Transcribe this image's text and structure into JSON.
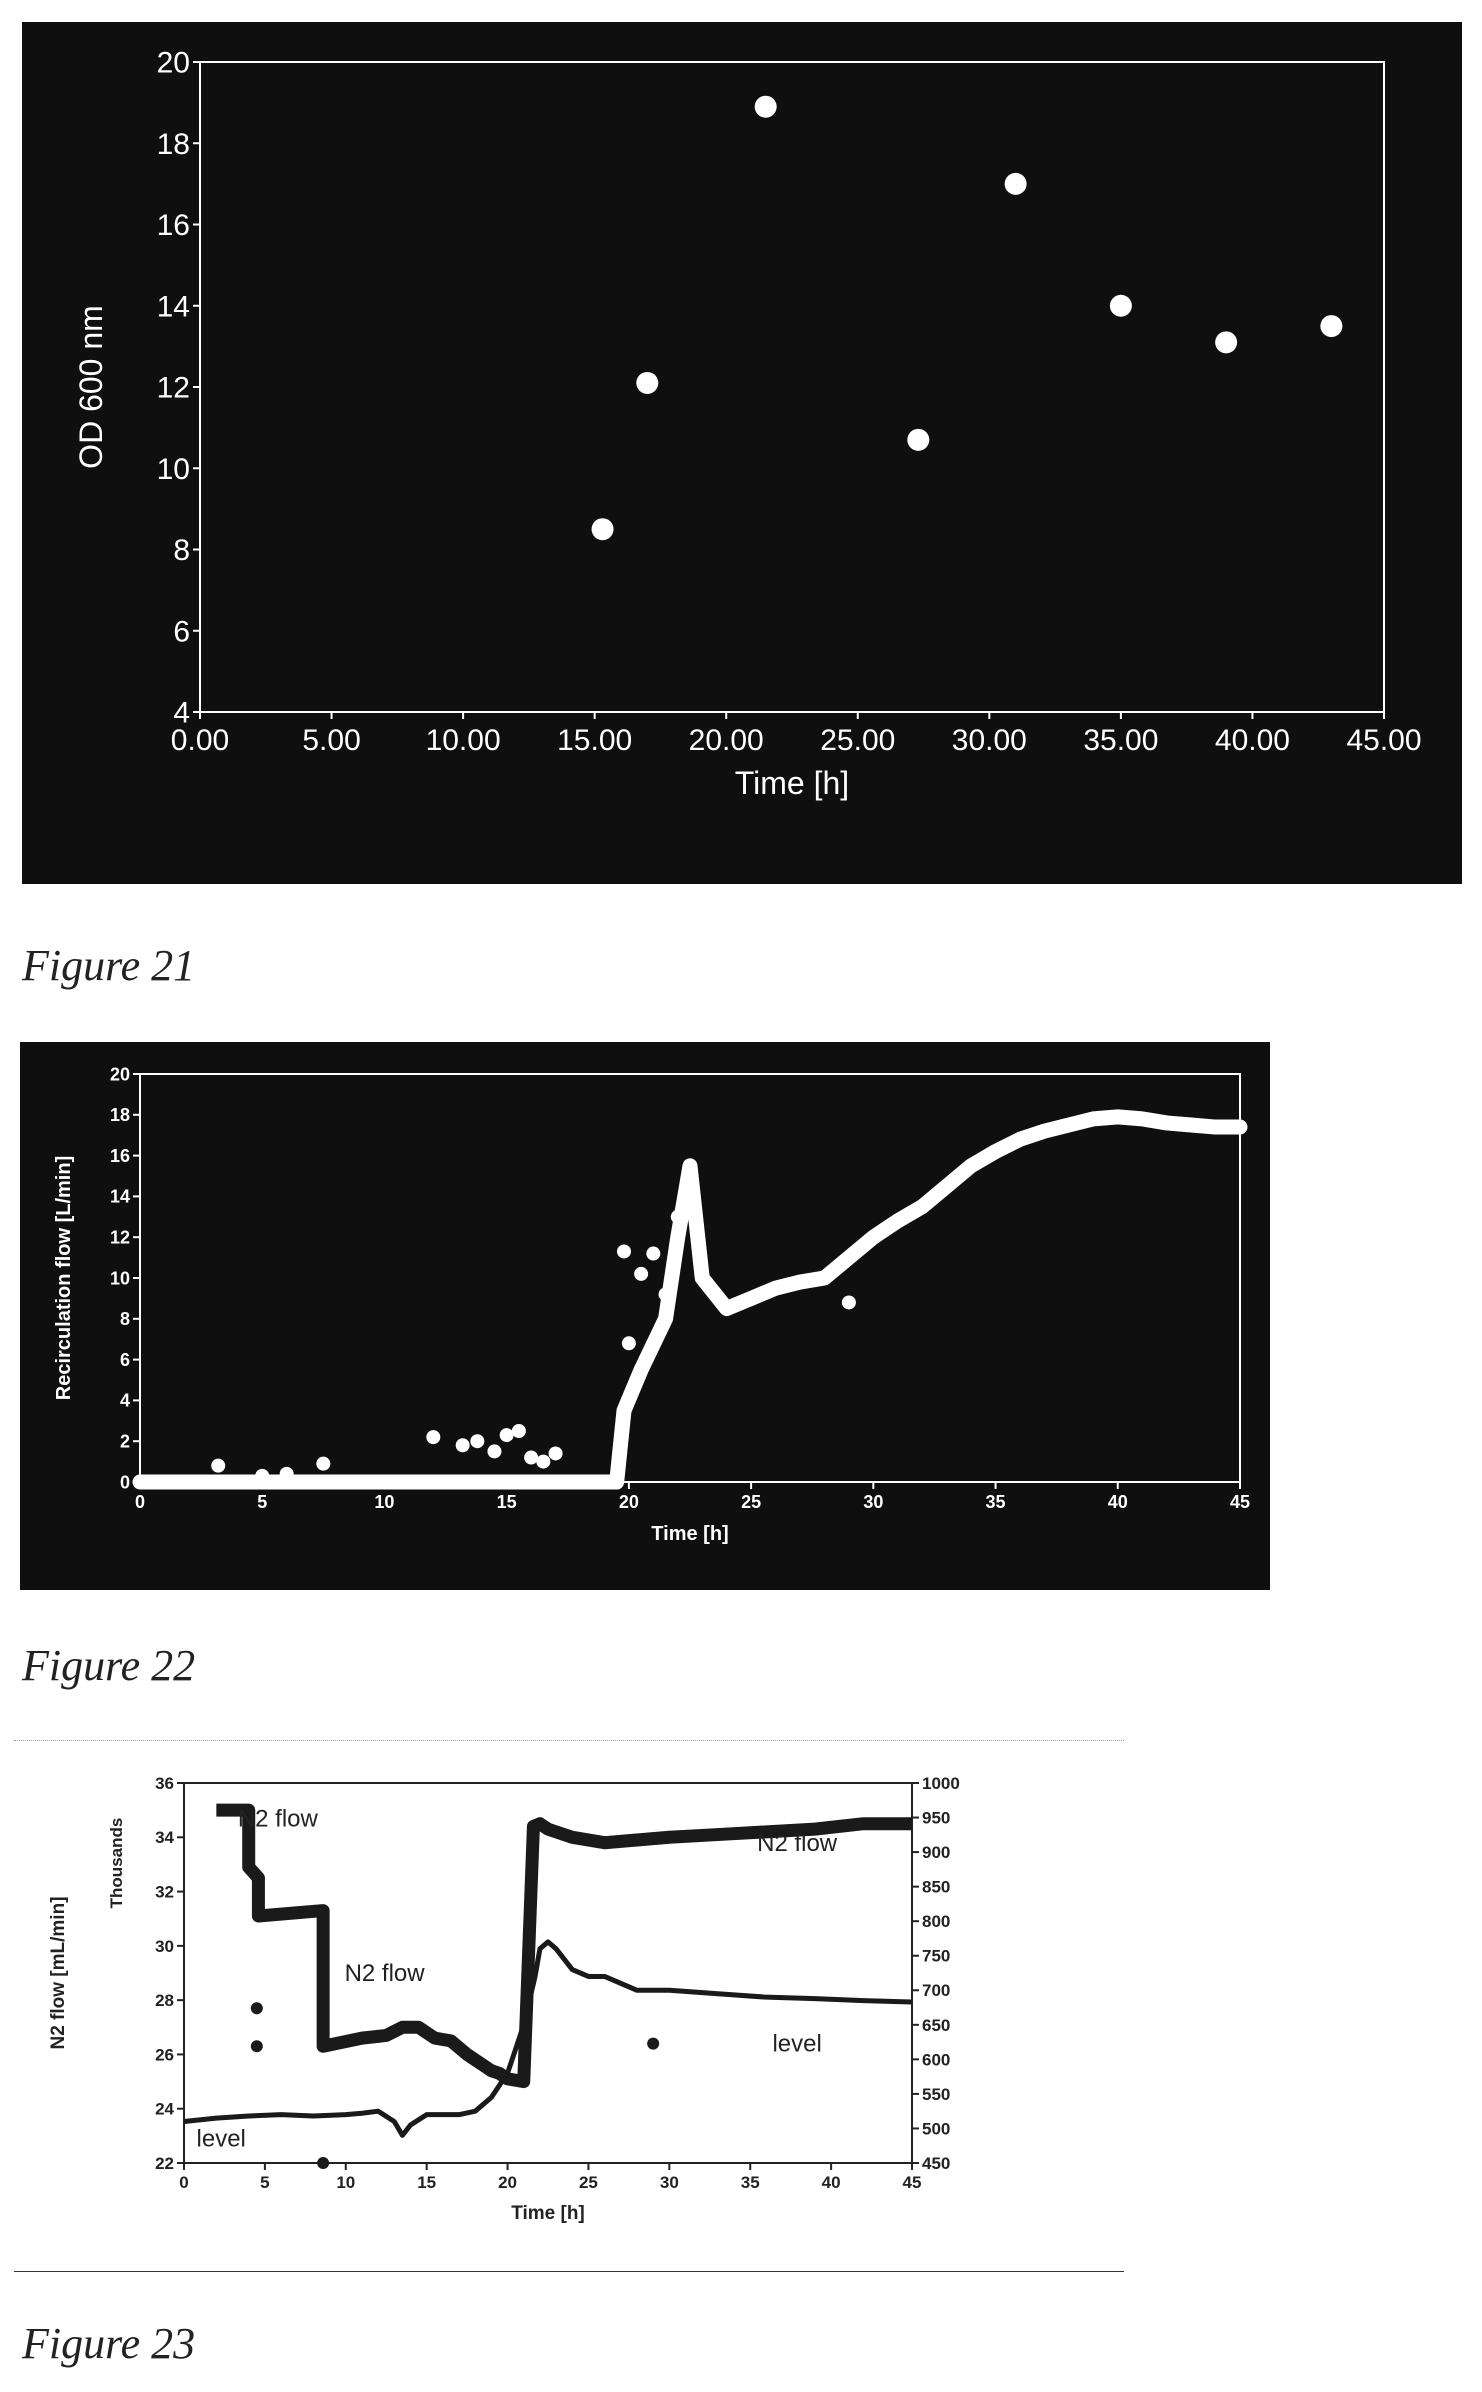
{
  "chart_data": [
    {
      "type": "scatter",
      "title": "",
      "xlabel": "Time [h]",
      "ylabel": "OD 600 nm",
      "xlim": [
        0,
        45
      ],
      "ylim": [
        4,
        20
      ],
      "xticks": [
        0,
        5,
        10,
        15,
        20,
        25,
        30,
        35,
        40,
        45
      ],
      "xtick_labels": [
        "0.00",
        "5.00",
        "10.00",
        "15.00",
        "20.00",
        "25.00",
        "30.00",
        "35.00",
        "40.00",
        "45.00"
      ],
      "yticks": [
        4,
        6,
        8,
        10,
        12,
        14,
        16,
        18,
        20
      ],
      "ytick_labels": [
        "4",
        "6",
        "8",
        "10",
        "12",
        "14",
        "16",
        "18",
        "20"
      ],
      "grid": false,
      "x": [
        15.3,
        17.0,
        21.5,
        27.3,
        31.0,
        35.0,
        39.0,
        43.0
      ],
      "y": [
        8.5,
        12.1,
        18.9,
        10.7,
        17.0,
        14.0,
        13.1,
        13.5
      ],
      "colors": {
        "background": "#0f0f0f",
        "marker": "#ffffff",
        "axis": "#ffffff"
      }
    },
    {
      "type": "scatter",
      "title": "",
      "xlabel": "Time [h]",
      "ylabel": "Recirculation flow [L/min]",
      "xlim": [
        0,
        45
      ],
      "ylim": [
        0,
        20
      ],
      "xticks": [
        0,
        5,
        10,
        15,
        20,
        25,
        30,
        35,
        40,
        45
      ],
      "xtick_labels": [
        "0",
        "5",
        "10",
        "15",
        "20",
        "25",
        "30",
        "35",
        "40",
        "45"
      ],
      "yticks": [
        0,
        2,
        4,
        6,
        8,
        10,
        12,
        14,
        16,
        18,
        20
      ],
      "ytick_labels": [
        "0",
        "2",
        "4",
        "6",
        "8",
        "10",
        "12",
        "14",
        "16",
        "18",
        "20"
      ],
      "grid": false,
      "series": [
        {
          "x": [
            0,
            2,
            4,
            6,
            8,
            10,
            12,
            14,
            16,
            18,
            19.5,
            19.8,
            20.5,
            21.5,
            22.0,
            22.5,
            23.0,
            24.0,
            25.0,
            26.0,
            27.0,
            28.0,
            29.0,
            30.0,
            31.0,
            32.0,
            33.0,
            34.0,
            35.0,
            36.0,
            37.0,
            38.0,
            39.0,
            40.0,
            41.0,
            42.0,
            43.0,
            44.0,
            45.0
          ],
          "y": [
            0,
            0,
            0,
            0,
            0,
            0,
            0,
            0,
            0,
            0,
            0,
            3.5,
            5.5,
            8.0,
            12.0,
            15.5,
            10.0,
            8.5,
            9.0,
            9.5,
            9.8,
            10.0,
            11.0,
            12.0,
            12.8,
            13.5,
            14.5,
            15.5,
            16.2,
            16.8,
            17.2,
            17.5,
            17.8,
            17.9,
            17.8,
            17.6,
            17.5,
            17.4,
            17.4
          ]
        },
        {
          "x": [
            3.2,
            5.0,
            6.0,
            7.5,
            12.0,
            13.2,
            13.8,
            14.5,
            15.0,
            15.5,
            16.0,
            16.5,
            17.0,
            19.8,
            20.0,
            20.5,
            21.0,
            21.5,
            22.0,
            29.0
          ],
          "y": [
            0.8,
            0.3,
            0.4,
            0.9,
            2.2,
            1.8,
            2.0,
            1.5,
            2.3,
            2.5,
            1.2,
            1.0,
            1.4,
            11.3,
            6.8,
            10.2,
            11.2,
            9.2,
            13.0,
            8.8
          ]
        }
      ],
      "colors": {
        "background": "#0f0f0f",
        "marker": "#ffffff",
        "axis": "#ffffff"
      }
    },
    {
      "type": "line",
      "title": "",
      "xlabel": "Time [h]",
      "ylabel": "N2 flow [mL/min]",
      "y_multiplier_label": "Thousands",
      "xlim": [
        0,
        45
      ],
      "ylim": [
        22,
        36
      ],
      "y2lim": [
        450,
        1000
      ],
      "xticks": [
        0,
        5,
        10,
        15,
        20,
        25,
        30,
        35,
        40,
        45
      ],
      "xtick_labels": [
        "0",
        "5",
        "10",
        "15",
        "20",
        "25",
        "30",
        "35",
        "40",
        "45"
      ],
      "yticks": [
        22,
        24,
        26,
        28,
        30,
        32,
        34,
        36
      ],
      "ytick_labels": [
        "22",
        "24",
        "26",
        "28",
        "30",
        "32",
        "34",
        "36"
      ],
      "y2ticks": [
        450,
        500,
        550,
        600,
        650,
        700,
        750,
        800,
        850,
        900,
        950,
        1000
      ],
      "y2tick_labels": [
        "450",
        "500",
        "550",
        "600",
        "650",
        "700",
        "750",
        "800",
        "850",
        "900",
        "950",
        "1000"
      ],
      "grid": false,
      "annotations": [
        {
          "text": "N2 flow",
          "x": 5.8,
          "y": 34.4
        },
        {
          "text": "N2 flow",
          "x": 12.4,
          "y": 28.7
        },
        {
          "text": "N2 flow",
          "x": 37.9,
          "y": 33.5
        },
        {
          "text": "level",
          "x": 2.3,
          "y": 22.6
        },
        {
          "text": "level",
          "x": 37.9,
          "y": 26.1
        }
      ],
      "series": [
        {
          "axis": "left",
          "x": [
            2.0,
            4.0,
            4.0,
            4.6,
            4.6,
            8.6,
            8.6,
            11.0,
            12.5,
            13.5,
            14.5,
            15.5,
            16.5,
            17.5,
            18.5,
            19.0,
            19.5,
            20.0,
            21.0,
            21.6,
            22.0,
            22.5,
            23.0,
            24.0,
            26.0,
            28.0,
            30.0,
            33.0,
            36.0,
            39.0,
            42.0,
            45.0
          ],
          "y": [
            35.0,
            35.0,
            32.9,
            32.5,
            31.1,
            31.3,
            26.3,
            26.6,
            26.7,
            27.0,
            27.0,
            26.6,
            26.5,
            26.0,
            25.6,
            25.4,
            25.3,
            25.1,
            25.0,
            34.4,
            34.5,
            34.3,
            34.2,
            34.0,
            33.8,
            33.9,
            34.0,
            34.1,
            34.2,
            34.3,
            34.5,
            34.5
          ]
        },
        {
          "axis": "right",
          "x": [
            0,
            2,
            4,
            6,
            8,
            10,
            11,
            12,
            13,
            13.5,
            14,
            15,
            16,
            17,
            18,
            19,
            20,
            21,
            21.7,
            22.0,
            22.5,
            23.0,
            24.0,
            25.0,
            26.0,
            28.0,
            30.0,
            33.0,
            36.0,
            39.0,
            42.0,
            45.0
          ],
          "y": [
            510,
            515,
            518,
            520,
            518,
            520,
            522,
            525,
            510,
            490,
            505,
            520,
            520,
            520,
            525,
            545,
            580,
            650,
            720,
            760,
            770,
            760,
            730,
            720,
            720,
            700,
            700,
            695,
            690,
            688,
            685,
            683
          ]
        },
        {
          "axis": "left",
          "x": [
            4.5,
            4.5,
            8.6,
            29.0
          ],
          "y": [
            27.7,
            26.3,
            22.0,
            26.4
          ]
        }
      ],
      "colors": {
        "background": "#ffffff",
        "marker": "#1a1a1a",
        "axis": "#222222"
      }
    }
  ],
  "captions": {
    "fig21": "Figure 21",
    "fig22": "Figure 22",
    "fig23": "Figure 23"
  }
}
